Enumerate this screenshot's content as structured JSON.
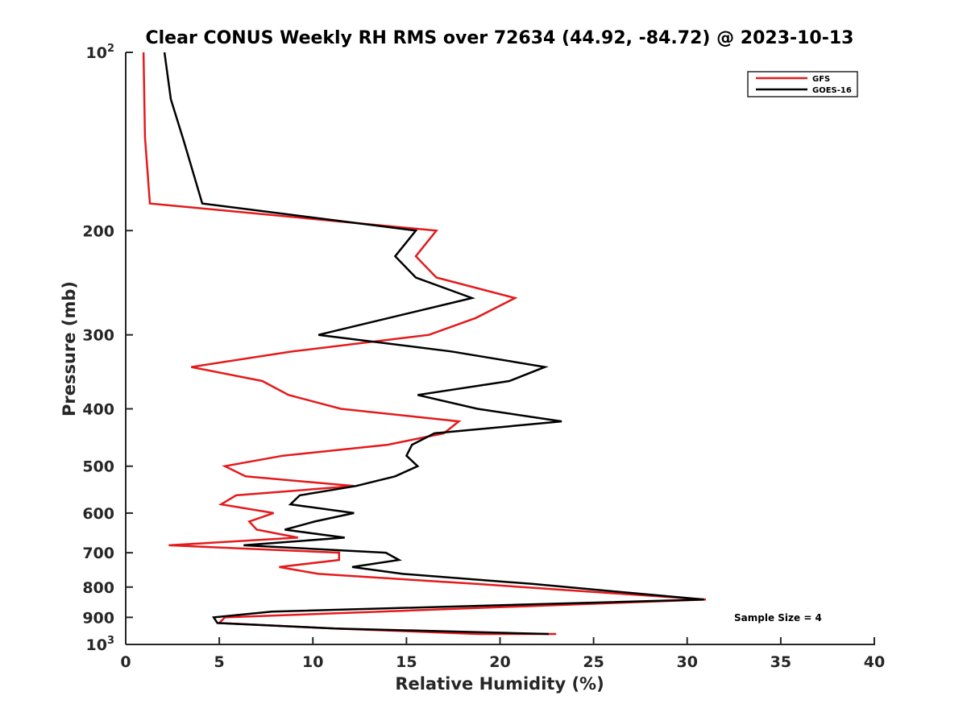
{
  "chart_data": {
    "type": "line",
    "title": "Clear CONUS Weekly RH RMS over 72634 (44.92, -84.72) @ 2023-10-13",
    "xlabel": "Relative Humidity (%)",
    "ylabel": "Pressure (mb)",
    "xlim": [
      0,
      40
    ],
    "ylim": [
      1000,
      100
    ],
    "yscale": "log",
    "y_inverted": true,
    "xticks": [
      0,
      5,
      10,
      15,
      20,
      25,
      30,
      35,
      40
    ],
    "xtick_labels": [
      "0",
      "5",
      "10",
      "15",
      "20",
      "25",
      "30",
      "35",
      "40"
    ],
    "yticks": [
      100,
      200,
      300,
      400,
      500,
      600,
      700,
      800,
      900,
      1000
    ],
    "ytick_labels": [
      {
        "base": "10",
        "exp": "2"
      },
      {
        "text": "200"
      },
      {
        "text": "300"
      },
      {
        "text": "400"
      },
      {
        "text": "500"
      },
      {
        "text": "600"
      },
      {
        "text": "700"
      },
      {
        "text": "800"
      },
      {
        "text": "900"
      },
      {
        "base": "10",
        "exp": "3"
      }
    ],
    "grid": false,
    "legend_position": "top-right",
    "annotation": "Sample Size = 4",
    "series": [
      {
        "name": "GFS",
        "color": "#e41a1c",
        "points": [
          [
            0.95,
            100
          ],
          [
            1.03,
            139
          ],
          [
            1.29,
            180
          ],
          [
            16.6,
            200
          ],
          [
            15.5,
            221
          ],
          [
            16.6,
            240
          ],
          [
            20.8,
            260
          ],
          [
            18.7,
            281
          ],
          [
            16.2,
            300
          ],
          [
            8.9,
            320
          ],
          [
            3.5,
            340
          ],
          [
            7.3,
            359
          ],
          [
            8.7,
            379
          ],
          [
            11.5,
            400
          ],
          [
            17.8,
            420
          ],
          [
            17.0,
            440
          ],
          [
            14.0,
            460
          ],
          [
            8.4,
            480
          ],
          [
            5.3,
            500
          ],
          [
            6.4,
            520
          ],
          [
            12.2,
            540
          ],
          [
            5.9,
            560
          ],
          [
            5.1,
            580
          ],
          [
            7.9,
            600
          ],
          [
            6.6,
            620
          ],
          [
            7.0,
            640
          ],
          [
            9.2,
            660
          ],
          [
            2.3,
            680
          ],
          [
            11.4,
            700
          ],
          [
            11.4,
            720
          ],
          [
            8.2,
            740
          ],
          [
            10.3,
            760
          ],
          [
            18.7,
            790
          ],
          [
            31.0,
            840
          ],
          [
            5.3,
            900
          ],
          [
            5.0,
            920
          ],
          [
            11.2,
            940
          ],
          [
            18.8,
            960
          ],
          [
            23.0,
            960
          ]
        ]
      },
      {
        "name": "GOES-16",
        "color": "#000000",
        "points": [
          [
            2.07,
            100
          ],
          [
            2.41,
            120
          ],
          [
            3.1,
            141
          ],
          [
            4.09,
            180
          ],
          [
            15.5,
            200
          ],
          [
            14.4,
            221
          ],
          [
            15.5,
            240
          ],
          [
            18.5,
            260
          ],
          [
            10.3,
            300
          ],
          [
            17.4,
            320
          ],
          [
            22.4,
            340
          ],
          [
            20.5,
            359
          ],
          [
            15.6,
            379
          ],
          [
            18.8,
            400
          ],
          [
            23.3,
            420
          ],
          [
            16.5,
            440
          ],
          [
            15.3,
            460
          ],
          [
            15.0,
            480
          ],
          [
            15.6,
            500
          ],
          [
            14.4,
            520
          ],
          [
            12.3,
            540
          ],
          [
            9.3,
            560
          ],
          [
            8.8,
            580
          ],
          [
            12.2,
            600
          ],
          [
            10.1,
            620
          ],
          [
            8.5,
            640
          ],
          [
            11.7,
            660
          ],
          [
            6.3,
            680
          ],
          [
            13.9,
            700
          ],
          [
            14.6,
            720
          ],
          [
            12.1,
            740
          ],
          [
            14.8,
            760
          ],
          [
            21.7,
            790
          ],
          [
            30.9,
            840
          ],
          [
            7.8,
            880
          ],
          [
            4.7,
            900
          ],
          [
            4.9,
            920
          ],
          [
            11.2,
            940
          ],
          [
            22.6,
            960
          ]
        ]
      }
    ]
  }
}
